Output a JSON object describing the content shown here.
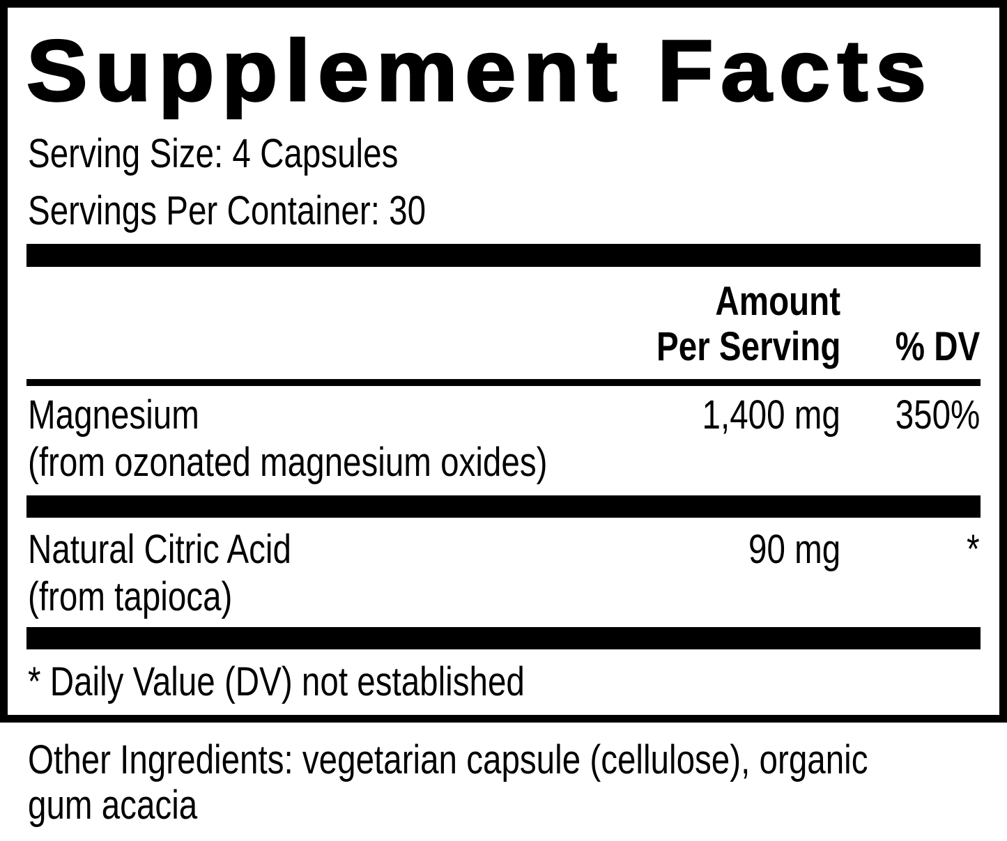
{
  "title": "Supplement Facts",
  "serving_size": "Serving Size: 4 Capsules",
  "servings_per_container": "Servings Per Container: 30",
  "header": {
    "amount_line1": "Amount",
    "amount_line2": "Per Serving",
    "dv": "% DV"
  },
  "rows": [
    {
      "name": "Magnesium",
      "source": "(from ozonated magnesium oxides)",
      "amount": "1,400 mg",
      "dv": "350%"
    },
    {
      "name": "Natural Citric Acid",
      "source": "(from tapioca)",
      "amount": "90 mg",
      "dv": "*"
    }
  ],
  "footnote": "* Daily Value (DV) not established",
  "other_ingredients": {
    "line1": "Other Ingredients: vegetarian capsule (cellulose), organic",
    "line2": "gum acacia"
  }
}
